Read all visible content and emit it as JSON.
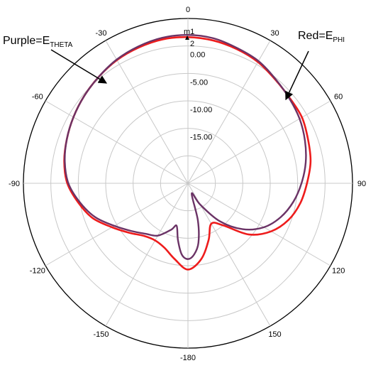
{
  "chart_data": {
    "type": "polar",
    "title": "",
    "angle_ticks": [
      "0",
      "30",
      "60",
      "90",
      "120",
      "150",
      "-180",
      "-150",
      "-120",
      "-90",
      "-60",
      "-30"
    ],
    "angle_tick_values": [
      0,
      30,
      60,
      90,
      120,
      150,
      180,
      -150,
      -120,
      -90,
      -60,
      -30
    ],
    "radial_ticks": [
      "2",
      "0.00",
      "-5.00",
      "-10.00",
      "-15.00"
    ],
    "radial_tick_values": [
      2,
      0,
      -5,
      -10,
      -15
    ],
    "r_range": [
      -25,
      5
    ],
    "grid": true,
    "marker_label": "m1",
    "annotations": [
      {
        "id": "purple",
        "prefix": "Purple=E",
        "sub": "THETA"
      },
      {
        "id": "red",
        "prefix": "Red=E",
        "sub": "PHI"
      }
    ],
    "series": [
      {
        "id": "ephi",
        "color": "#ee1c1c",
        "angles": [
          0,
          10,
          20,
          30,
          40,
          50,
          60,
          70,
          80,
          90,
          100,
          110,
          120,
          130,
          140,
          150,
          160,
          170,
          180,
          -170,
          -160,
          -150,
          -140,
          -130,
          -120,
          -110,
          -100,
          -90,
          -80,
          -70,
          -60,
          -50,
          -40,
          -30,
          -20,
          -10
        ],
        "values": [
          1.6,
          1.4,
          1.0,
          0.5,
          -0.3,
          -0.8,
          -1.0,
          -1.7,
          -2.3,
          -3.3,
          -4.2,
          -5.5,
          -7.5,
          -10.5,
          -15.0,
          -16.5,
          -14.0,
          -11.0,
          -9.3,
          -11.0,
          -12.5,
          -13.0,
          -12.5,
          -11.0,
          -9.0,
          -6.5,
          -4.7,
          -3.0,
          -2.1,
          -1.5,
          -0.9,
          -0.3,
          0.3,
          0.9,
          1.3,
          1.6
        ]
      },
      {
        "id": "etheta",
        "color": "#6b3366",
        "angles": [
          0,
          10,
          20,
          30,
          40,
          50,
          60,
          70,
          80,
          90,
          100,
          110,
          120,
          130,
          140,
          150,
          160,
          165,
          170,
          175,
          180,
          -175,
          -170,
          -165,
          -160,
          -150,
          -140,
          -130,
          -120,
          -110,
          -100,
          -90,
          -80,
          -70,
          -60,
          -50,
          -40,
          -30,
          -20,
          -10
        ],
        "values": [
          2.0,
          1.8,
          1.2,
          0.7,
          -0.2,
          -0.9,
          -1.5,
          -2.3,
          -3.2,
          -4.3,
          -5.5,
          -7.0,
          -9.0,
          -12.0,
          -16.0,
          -20.5,
          -23.0,
          -18.0,
          -14.0,
          -12.0,
          -11.2,
          -12.0,
          -14.5,
          -17.0,
          -16.0,
          -14.0,
          -13.0,
          -11.5,
          -9.5,
          -7.0,
          -5.0,
          -3.2,
          -2.2,
          -1.5,
          -0.9,
          -0.3,
          0.3,
          1.0,
          1.5,
          1.9
        ]
      }
    ]
  }
}
